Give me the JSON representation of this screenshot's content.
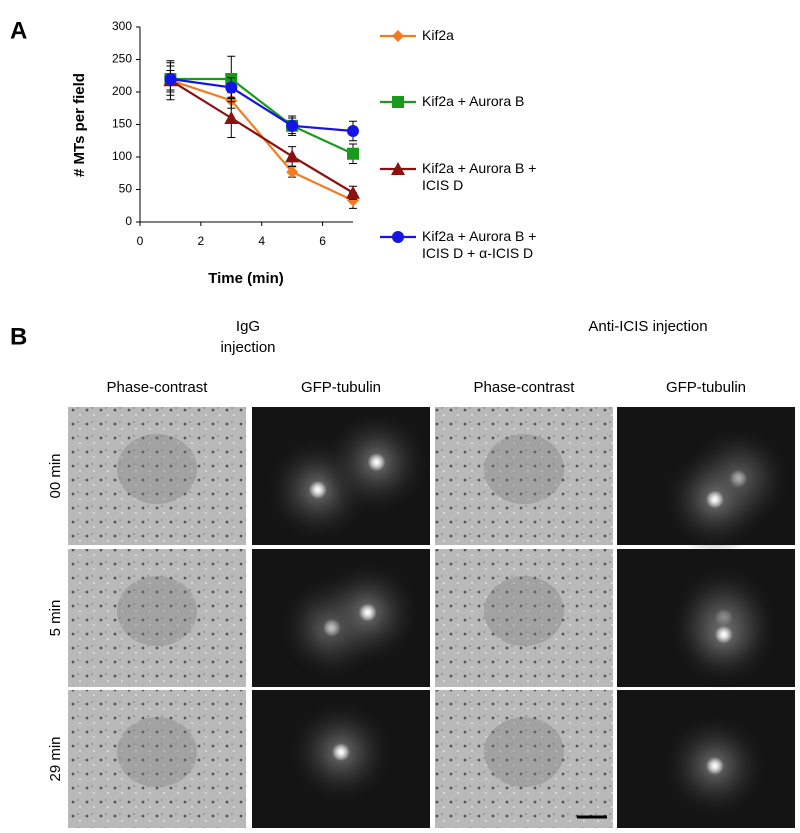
{
  "panel_a": {
    "label": "A"
  },
  "chart_data": {
    "type": "line",
    "x_label": "Time (min)",
    "y_label": "# MTs per field",
    "xlim": [
      0,
      7
    ],
    "xticks": [
      0,
      2,
      4,
      6
    ],
    "ylim": [
      0,
      300
    ],
    "yticks": [
      0,
      50,
      100,
      150,
      200,
      250,
      300
    ],
    "x": [
      1,
      3,
      5,
      7
    ],
    "series": [
      {
        "name": "Kif2a",
        "color": "#f47c20",
        "marker": "diamond",
        "values": [
          218,
          187,
          77,
          33
        ],
        "errors": [
          15,
          12,
          8,
          12
        ]
      },
      {
        "name": "Kif2a + Aurora B",
        "color": "#1a9a1a",
        "marker": "square",
        "values": [
          220,
          220,
          148,
          105
        ],
        "errors": [
          25,
          35,
          12,
          15
        ]
      },
      {
        "name": "Kif2a + Aurora B + ICIS D",
        "color": "#8b1010",
        "marker": "triangle",
        "values": [
          218,
          160,
          101,
          45
        ],
        "errors": [
          30,
          30,
          15,
          10
        ]
      },
      {
        "name": "Kif2a + Aurora B + ICIS D + α-ICIS D",
        "color": "#1414e6",
        "marker": "circle",
        "values": [
          220,
          207,
          148,
          140
        ],
        "errors": [
          20,
          15,
          15,
          15
        ]
      }
    ]
  },
  "panel_b": {
    "label": "B",
    "groups": [
      "IgG injection",
      "Anti-ICIS  injection"
    ],
    "columns": [
      "Phase-contrast",
      "GFP-tubulin",
      "Phase-contrast",
      "GFP-tubulin"
    ],
    "rows": [
      "00 min",
      "5 min",
      "29 min"
    ]
  }
}
